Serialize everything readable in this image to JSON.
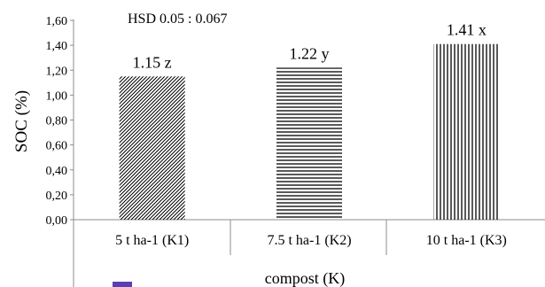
{
  "chart_data": {
    "type": "bar",
    "xlabel": "compost (K)",
    "ylabel": "SOC (%)",
    "ylim": [
      0,
      1.6
    ],
    "yticks": [
      "0,00",
      "0,20",
      "0,40",
      "0,60",
      "0,80",
      "1,00",
      "1,20",
      "1,40",
      "1,60"
    ],
    "categories": [
      "5 t ha-1 (K1)",
      "7.5 t ha-1 (K2)",
      "10 t ha-1  (K3)"
    ],
    "values": [
      1.15,
      1.22,
      1.41
    ],
    "data_labels": [
      "1.15 z",
      "1.22 y",
      "1.41 x"
    ],
    "fill_patterns": [
      "diagonal-hatch",
      "horizontal-lines",
      "vertical-lines"
    ],
    "annotation": "HSD 0.05 : 0.067",
    "grid": false,
    "legend": "none"
  }
}
